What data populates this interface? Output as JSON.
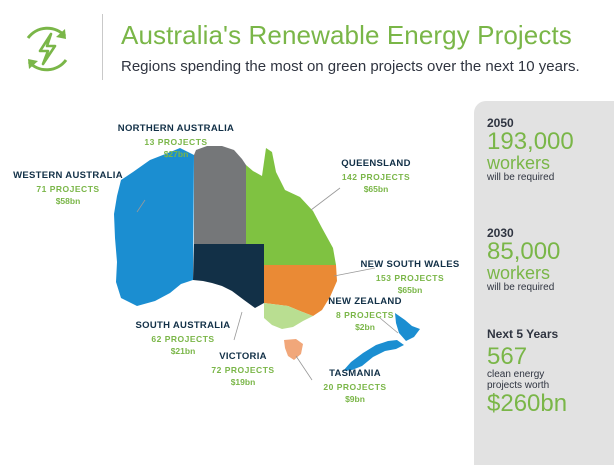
{
  "header": {
    "title": "Australia's Renewable Energy Projects",
    "subtitle": "Regions spending the most on green projects over the next 10 years.",
    "icon": "renewable-lightning-icon"
  },
  "regions": {
    "northern_australia": {
      "name": "NORTHERN AUSTRALIA",
      "projects": "13 PROJECTS",
      "spend": "$27bn",
      "color": "#757779"
    },
    "western_australia": {
      "name": "WESTERN AUSTRALIA",
      "projects": "71 PROJECTS",
      "spend": "$58bn",
      "color": "#1b8ed1"
    },
    "queensland": {
      "name": "QUEENSLAND",
      "projects": "142 PROJECTS",
      "spend": "$65bn",
      "color": "#7fc241"
    },
    "new_south_wales": {
      "name": "NEW SOUTH WALES",
      "projects": "153 PROJECTS",
      "spend": "$65bn",
      "color": "#ea8a35"
    },
    "new_zealand": {
      "name": "NEW ZEALAND",
      "projects": "8 PROJECTS",
      "spend": "$2bn",
      "color": "#1b8ed1"
    },
    "south_australia": {
      "name": "SOUTH AUSTRALIA",
      "projects": "62 PROJECTS",
      "spend": "$21bn",
      "color": "#123047"
    },
    "victoria": {
      "name": "VICTORIA",
      "projects": "72 PROJECTS",
      "spend": "$19bn",
      "color": "#b9de91"
    },
    "tasmania": {
      "name": "TASMANIA",
      "projects": "20 PROJECTS",
      "spend": "$9bn",
      "color": "#f1a77a"
    }
  },
  "sidebar": {
    "stat1": {
      "year": "2050",
      "value": "193,000",
      "unit": "workers",
      "note": "will be required"
    },
    "stat2": {
      "year": "2030",
      "value": "85,000",
      "unit": "workers",
      "note": "will be required"
    },
    "stat3": {
      "year": "Next 5 Years",
      "value": "567",
      "note1": "clean energy",
      "note2": "projects worth",
      "money": "$260bn"
    }
  }
}
